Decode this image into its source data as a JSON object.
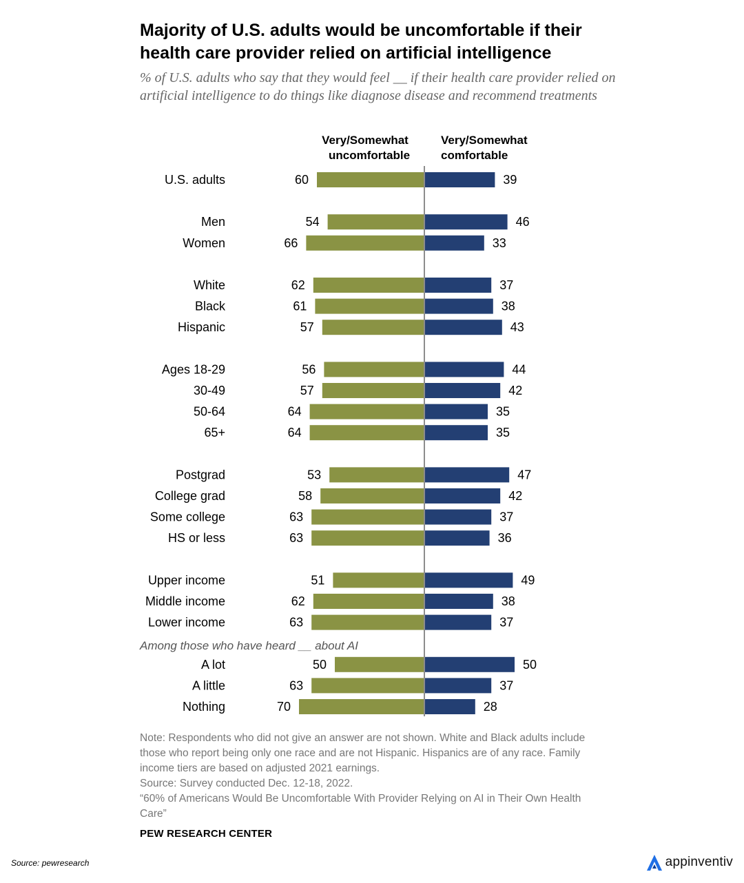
{
  "title": "Majority of U.S. adults would be uncomfortable if their health care provider relied on artificial intelligence",
  "subtitle": "% of U.S. adults who say that they would feel __ if their health care provider relied on artificial intelligence to do things like diagnose disease and recommend treatments",
  "chart_data": {
    "type": "bar",
    "orientation": "diverging-horizontal",
    "headers": {
      "left": [
        "Very/Somewhat",
        "uncomfortable"
      ],
      "right": [
        "Very/Somewhat",
        "comfortable"
      ]
    },
    "colors": {
      "uncomfortable": "#8a9344",
      "comfortable": "#233f73",
      "axis": "#8c8c8c"
    },
    "section_label": "Among those who have heard __ about AI",
    "groups": [
      {
        "rows": [
          {
            "label": "U.S. adults",
            "uncomfortable": 60,
            "comfortable": 39
          }
        ]
      },
      {
        "rows": [
          {
            "label": "Men",
            "uncomfortable": 54,
            "comfortable": 46
          },
          {
            "label": "Women",
            "uncomfortable": 66,
            "comfortable": 33
          }
        ]
      },
      {
        "rows": [
          {
            "label": "White",
            "uncomfortable": 62,
            "comfortable": 37
          },
          {
            "label": "Black",
            "uncomfortable": 61,
            "comfortable": 38
          },
          {
            "label": "Hispanic",
            "uncomfortable": 57,
            "comfortable": 43
          }
        ]
      },
      {
        "rows": [
          {
            "label": "Ages 18-29",
            "uncomfortable": 56,
            "comfortable": 44
          },
          {
            "label": "30-49",
            "uncomfortable": 57,
            "comfortable": 42
          },
          {
            "label": "50-64",
            "uncomfortable": 64,
            "comfortable": 35
          },
          {
            "label": "65+",
            "uncomfortable": 64,
            "comfortable": 35
          }
        ]
      },
      {
        "rows": [
          {
            "label": "Postgrad",
            "uncomfortable": 53,
            "comfortable": 47
          },
          {
            "label": "College grad",
            "uncomfortable": 58,
            "comfortable": 42
          },
          {
            "label": "Some college",
            "uncomfortable": 63,
            "comfortable": 37
          },
          {
            "label": "HS or less",
            "uncomfortable": 63,
            "comfortable": 36
          }
        ]
      },
      {
        "rows": [
          {
            "label": "Upper income",
            "uncomfortable": 51,
            "comfortable": 49
          },
          {
            "label": "Middle income",
            "uncomfortable": 62,
            "comfortable": 38
          },
          {
            "label": "Lower income",
            "uncomfortable": 63,
            "comfortable": 37
          }
        ]
      },
      {
        "section": true,
        "rows": [
          {
            "label": "A lot",
            "uncomfortable": 50,
            "comfortable": 50
          },
          {
            "label": "A little",
            "uncomfortable": 63,
            "comfortable": 37
          },
          {
            "label": "Nothing",
            "uncomfortable": 70,
            "comfortable": 28
          }
        ]
      }
    ]
  },
  "notes": [
    "Note: Respondents who did not give an answer are not shown. White and Black adults include those who report being only one race and are not Hispanic. Hispanics are of any race. Family income tiers are based on adjusted 2021 earnings.",
    "Source: Survey conducted Dec. 12-18, 2022.",
    "“60% of Americans Would Be Uncomfortable With Provider Relying on AI in Their Own Health Care”"
  ],
  "brand": "PEW RESEARCH CENTER",
  "image_source": "Source: pewresearch",
  "logo": {
    "text": "appinventiv",
    "icon": "appinventiv-logo-icon",
    "color": "#1f6fe5"
  }
}
